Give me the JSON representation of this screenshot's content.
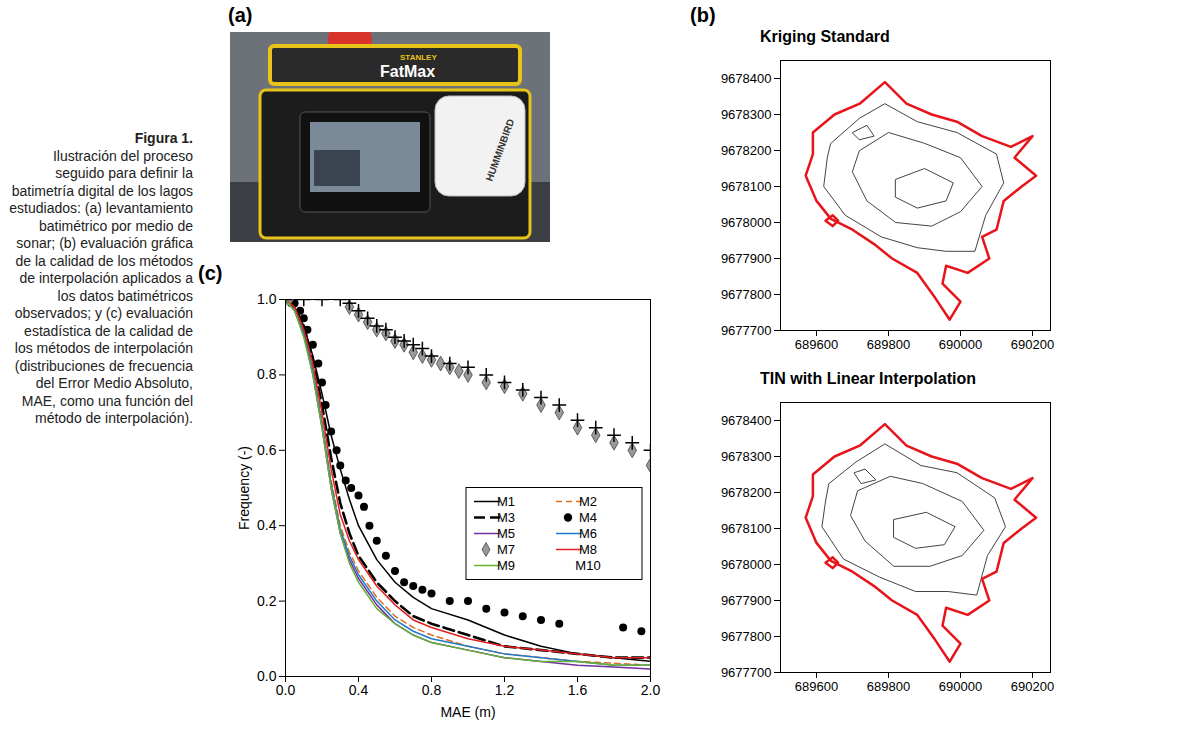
{
  "caption": {
    "label": "Figura 1.",
    "text": "Ilustración del proceso seguido para definir la batimetría digital de los lagos estudiados: (a) levantamiento batimétrico por medio de sonar; (b) evaluación gráfica de la calidad de los métodos de interpolación aplicados a los datos batimétricos observados; y (c) evaluación estadística de la calidad de los métodos de interpolación (distribuciones de frecuencia del Error Medio Absoluto, MAE, como una función del método de interpolación)."
  },
  "photo": {
    "letter": "(a)",
    "texts": [
      "STANLEY",
      "FatMax",
      "HUMMINBIRD"
    ]
  },
  "chart_data": [
    {
      "type": "map",
      "letter": "(b)",
      "title": "Kriging Standard",
      "xlim": [
        689500,
        690250
      ],
      "ylim": [
        9677700,
        9678450
      ],
      "xticks": [
        689600,
        689800,
        690000,
        690200
      ],
      "yticks": [
        9677700,
        9677800,
        9677900,
        9678000,
        9678100,
        9678200,
        9678300,
        9678400
      ],
      "outline": {
        "color": "#e8141c",
        "x": [
          689590,
          689650,
          689720,
          689790,
          689850,
          689920,
          689990,
          690060,
          690140,
          690200,
          690150,
          690210,
          690170,
          690120,
          690100,
          690060,
          690080,
          690020,
          689960,
          689950,
          690000,
          689970,
          689930,
          689880,
          689810,
          689760,
          689700,
          689640,
          689600,
          689570,
          689590
        ],
        "y": [
          9678250,
          9678300,
          9678330,
          9678390,
          9678330,
          9678300,
          9678280,
          9678240,
          9678210,
          9678240,
          9678180,
          9678130,
          9678100,
          9678060,
          9677980,
          9677960,
          9677900,
          9677860,
          9677880,
          9677830,
          9677780,
          9677730,
          9677790,
          9677860,
          9677900,
          9677940,
          9677980,
          9678010,
          9678060,
          9678130,
          9678190
        ]
      },
      "islands": [
        {
          "color": "#e8141c",
          "x": [
            689625,
            689645,
            689660,
            689645
          ],
          "y": [
            9678005,
            9678020,
            9678005,
            9677990
          ]
        }
      ],
      "contours": [
        {
          "color": "#444444",
          "x": [
            689640,
            689720,
            689790,
            689880,
            689990,
            690100,
            690120,
            690070,
            690040,
            689960,
            689880,
            689780,
            689680,
            689620,
            689630
          ],
          "y": [
            9678220,
            9678290,
            9678330,
            9678280,
            9678250,
            9678190,
            9678110,
            9678020,
            9677920,
            9677920,
            9677930,
            9677960,
            9678020,
            9678100,
            9678180
          ]
        },
        {
          "color": "#444444",
          "x": [
            689720,
            689800,
            689900,
            690000,
            690060,
            690000,
            689920,
            689820,
            689740,
            689700
          ],
          "y": [
            9678200,
            9678250,
            9678220,
            9678180,
            9678100,
            9678030,
            9677990,
            9678000,
            9678060,
            9678140
          ]
        },
        {
          "color": "#444444",
          "x": [
            689820,
            689900,
            689980,
            689960,
            689880,
            689820
          ],
          "y": [
            9678120,
            9678150,
            9678110,
            9678060,
            9678040,
            9678070
          ]
        },
        {
          "color": "#444444",
          "x": [
            689700,
            689740,
            689760,
            689720
          ],
          "y": [
            9678250,
            9678270,
            9678240,
            9678230
          ]
        }
      ]
    },
    {
      "type": "map",
      "title": "TIN with Linear Interpolation",
      "xlim": [
        689500,
        690250
      ],
      "ylim": [
        9677700,
        9678450
      ],
      "xticks": [
        689600,
        689800,
        690000,
        690200
      ],
      "yticks": [
        9677700,
        9677800,
        9677900,
        9678000,
        9678100,
        9678200,
        9678300,
        9678400
      ],
      "outline": {
        "color": "#e8141c",
        "x": [
          689590,
          689650,
          689720,
          689790,
          689850,
          689920,
          689990,
          690060,
          690140,
          690200,
          690150,
          690210,
          690170,
          690120,
          690100,
          690060,
          690080,
          690020,
          689960,
          689950,
          690000,
          689970,
          689930,
          689880,
          689810,
          689760,
          689700,
          689640,
          689600,
          689570,
          689590
        ],
        "y": [
          9678250,
          9678300,
          9678330,
          9678390,
          9678330,
          9678300,
          9678280,
          9678240,
          9678210,
          9678240,
          9678180,
          9678130,
          9678100,
          9678060,
          9677980,
          9677960,
          9677900,
          9677860,
          9677880,
          9677830,
          9677780,
          9677730,
          9677790,
          9677860,
          9677900,
          9677940,
          9677980,
          9678010,
          9678060,
          9678130,
          9678190
        ]
      },
      "islands": [
        {
          "color": "#e8141c",
          "x": [
            689625,
            689645,
            689660,
            689645
          ],
          "y": [
            9678005,
            9678020,
            9678005,
            9677990
          ]
        }
      ],
      "contours": [
        {
          "color": "#444444",
          "x": [
            689635,
            689710,
            689790,
            689890,
            689990,
            690095,
            690125,
            690075,
            690045,
            689965,
            689875,
            689775,
            689675,
            689615,
            689625
          ],
          "y": [
            9678225,
            9678285,
            9678335,
            9678275,
            9678255,
            9678185,
            9678105,
            9678025,
            9677915,
            9677925,
            9677925,
            9677965,
            9678015,
            9678105,
            9678175
          ]
        },
        {
          "color": "#444444",
          "x": [
            689715,
            689805,
            689895,
            690005,
            690065,
            690005,
            689915,
            689815,
            689735,
            689695
          ],
          "y": [
            9678205,
            9678245,
            9678225,
            9678175,
            9678095,
            9678025,
            9677995,
            9677995,
            9678065,
            9678135
          ]
        },
        {
          "color": "#444444",
          "x": [
            689815,
            689905,
            689985,
            689955,
            689875,
            689815
          ],
          "y": [
            9678125,
            9678145,
            9678105,
            9678055,
            9678045,
            9678075
          ]
        },
        {
          "color": "#444444",
          "x": [
            689705,
            689735,
            689765,
            689725
          ],
          "y": [
            9678255,
            9678265,
            9678235,
            9678225
          ]
        }
      ]
    },
    {
      "type": "line",
      "letter": "(c)",
      "xlabel": "MAE (m)",
      "ylabel": "Frequency (-)",
      "xlim": [
        0,
        2
      ],
      "ylim": [
        0,
        1
      ],
      "xticks": [
        {
          "value": 0,
          "label": "0.0"
        },
        {
          "value": 0.4,
          "label": "0.4"
        },
        {
          "value": 0.8,
          "label": "0.8"
        },
        {
          "value": 1.2,
          "label": "1.2"
        },
        {
          "value": 1.6,
          "label": "1.6"
        },
        {
          "value": 2,
          "label": "2.0"
        }
      ],
      "yticks": [
        {
          "value": 0,
          "label": "0.0"
        },
        {
          "value": 0.2,
          "label": "0.2"
        },
        {
          "value": 0.4,
          "label": "0.4"
        },
        {
          "value": 0.6,
          "label": "0.6"
        },
        {
          "value": 0.8,
          "label": "0.8"
        },
        {
          "value": 1,
          "label": "1.0"
        }
      ],
      "legend": "right",
      "series": [
        {
          "name": "M1",
          "type": "line",
          "color": "#000000",
          "line_style": "solid",
          "x": [
            0,
            0.05,
            0.1,
            0.15,
            0.2,
            0.25,
            0.3,
            0.35,
            0.4,
            0.5,
            0.6,
            0.7,
            0.8,
            1.0,
            1.2,
            1.4,
            1.6,
            1.8,
            2.0
          ],
          "values": [
            1,
            0.98,
            0.93,
            0.85,
            0.75,
            0.64,
            0.55,
            0.47,
            0.4,
            0.31,
            0.25,
            0.21,
            0.18,
            0.15,
            0.11,
            0.08,
            0.06,
            0.05,
            0.04
          ]
        },
        {
          "name": "M2",
          "type": "line",
          "color": "#e07020",
          "line_style": "dashed",
          "x": [
            0,
            0.05,
            0.1,
            0.15,
            0.2,
            0.25,
            0.3,
            0.35,
            0.4,
            0.5,
            0.6,
            0.7,
            0.8,
            1.0,
            1.2,
            1.4,
            1.6,
            1.8,
            2.0
          ],
          "values": [
            1,
            0.98,
            0.92,
            0.82,
            0.68,
            0.52,
            0.4,
            0.33,
            0.28,
            0.21,
            0.16,
            0.13,
            0.11,
            0.08,
            0.06,
            0.05,
            0.04,
            0.035,
            0.03
          ]
        },
        {
          "name": "M3",
          "type": "line",
          "color": "#000000",
          "line_style": "longdashed",
          "x": [
            0,
            0.05,
            0.1,
            0.15,
            0.2,
            0.25,
            0.3,
            0.35,
            0.4,
            0.5,
            0.6,
            0.7,
            0.8,
            1.0,
            1.2,
            1.4,
            1.6,
            1.8,
            2.0
          ],
          "values": [
            1,
            0.98,
            0.93,
            0.84,
            0.72,
            0.58,
            0.46,
            0.38,
            0.32,
            0.25,
            0.2,
            0.16,
            0.14,
            0.11,
            0.08,
            0.07,
            0.06,
            0.05,
            0.05
          ]
        },
        {
          "name": "M4",
          "type": "scatter",
          "color": "#000000",
          "marker": "circle",
          "x": [
            0.02,
            0.05,
            0.08,
            0.1,
            0.12,
            0.15,
            0.18,
            0.2,
            0.22,
            0.25,
            0.28,
            0.3,
            0.33,
            0.36,
            0.4,
            0.43,
            0.46,
            0.5,
            0.55,
            0.6,
            0.65,
            0.7,
            0.75,
            0.8,
            0.9,
            1.0,
            1.1,
            1.2,
            1.3,
            1.4,
            1.5,
            1.85,
            1.95
          ],
          "values": [
            1,
            0.99,
            0.97,
            0.95,
            0.92,
            0.88,
            0.83,
            0.78,
            0.72,
            0.65,
            0.6,
            0.56,
            0.52,
            0.5,
            0.48,
            0.45,
            0.4,
            0.36,
            0.32,
            0.28,
            0.25,
            0.24,
            0.23,
            0.22,
            0.2,
            0.2,
            0.18,
            0.17,
            0.16,
            0.15,
            0.14,
            0.13,
            0.12
          ]
        },
        {
          "name": "M5",
          "type": "line",
          "color": "#7030a0",
          "line_style": "solid",
          "x": [
            0,
            0.05,
            0.1,
            0.15,
            0.2,
            0.25,
            0.3,
            0.35,
            0.4,
            0.5,
            0.6,
            0.7,
            0.8,
            1.0,
            1.2,
            1.4,
            1.6,
            1.8,
            2.0
          ],
          "values": [
            1,
            0.97,
            0.91,
            0.8,
            0.66,
            0.5,
            0.38,
            0.31,
            0.26,
            0.19,
            0.14,
            0.11,
            0.09,
            0.07,
            0.05,
            0.04,
            0.03,
            0.025,
            0.02
          ]
        },
        {
          "name": "M6",
          "type": "line",
          "color": "#1f78c8",
          "line_style": "solid",
          "x": [
            0,
            0.05,
            0.1,
            0.15,
            0.2,
            0.25,
            0.3,
            0.35,
            0.4,
            0.5,
            0.6,
            0.7,
            0.8,
            1.0,
            1.2,
            1.4,
            1.6,
            1.8,
            2.0
          ],
          "values": [
            1,
            0.97,
            0.91,
            0.81,
            0.67,
            0.51,
            0.39,
            0.32,
            0.27,
            0.2,
            0.15,
            0.12,
            0.1,
            0.08,
            0.06,
            0.05,
            0.04,
            0.03,
            0.03
          ]
        },
        {
          "name": "M7",
          "type": "scatter",
          "color": "#999999",
          "marker": "diamond",
          "x": [
            0.02,
            0.35,
            0.4,
            0.45,
            0.5,
            0.55,
            0.6,
            0.65,
            0.7,
            0.75,
            0.8,
            0.85,
            0.9,
            0.95,
            1.0,
            1.1,
            1.2,
            1.3,
            1.4,
            1.5,
            1.6,
            1.7,
            1.8,
            1.9,
            2.0
          ],
          "values": [
            1,
            0.98,
            0.96,
            0.94,
            0.92,
            0.91,
            0.89,
            0.88,
            0.86,
            0.85,
            0.84,
            0.83,
            0.82,
            0.81,
            0.8,
            0.78,
            0.77,
            0.75,
            0.72,
            0.7,
            0.66,
            0.64,
            0.62,
            0.6,
            0.56
          ]
        },
        {
          "name": "M8",
          "type": "line",
          "color": "#e02020",
          "line_style": "solid",
          "x": [
            0,
            0.05,
            0.1,
            0.15,
            0.2,
            0.25,
            0.3,
            0.35,
            0.4,
            0.5,
            0.6,
            0.7,
            0.8,
            1.0,
            1.2,
            1.4,
            1.6,
            1.8,
            2.0
          ],
          "values": [
            1,
            0.98,
            0.92,
            0.83,
            0.7,
            0.55,
            0.43,
            0.36,
            0.31,
            0.24,
            0.19,
            0.15,
            0.13,
            0.1,
            0.08,
            0.07,
            0.06,
            0.05,
            0.05
          ]
        },
        {
          "name": "M9",
          "type": "line",
          "color": "#66b032",
          "line_style": "solid",
          "x": [
            0,
            0.05,
            0.1,
            0.15,
            0.2,
            0.25,
            0.3,
            0.35,
            0.4,
            0.5,
            0.6,
            0.7,
            0.8,
            1.0,
            1.2,
            1.4,
            1.6,
            1.8,
            2.0
          ],
          "values": [
            1,
            0.97,
            0.9,
            0.8,
            0.66,
            0.5,
            0.38,
            0.3,
            0.25,
            0.18,
            0.14,
            0.11,
            0.09,
            0.07,
            0.05,
            0.04,
            0.04,
            0.03,
            0.03
          ]
        },
        {
          "name": "M10",
          "type": "scatter",
          "color": "#000000",
          "marker": "plus",
          "x": [
            0,
            0.1,
            0.2,
            0.3,
            0.35,
            0.4,
            0.45,
            0.5,
            0.55,
            0.6,
            0.65,
            0.7,
            0.75,
            0.8,
            0.9,
            1.0,
            1.1,
            1.2,
            1.3,
            1.4,
            1.5,
            1.6,
            1.7,
            1.8,
            1.9,
            2.0
          ],
          "values": [
            1,
            1,
            1,
            1,
            0.99,
            0.97,
            0.95,
            0.93,
            0.92,
            0.9,
            0.89,
            0.88,
            0.87,
            0.85,
            0.83,
            0.82,
            0.8,
            0.78,
            0.76,
            0.74,
            0.72,
            0.68,
            0.66,
            0.64,
            0.62,
            0.6
          ]
        }
      ]
    }
  ]
}
